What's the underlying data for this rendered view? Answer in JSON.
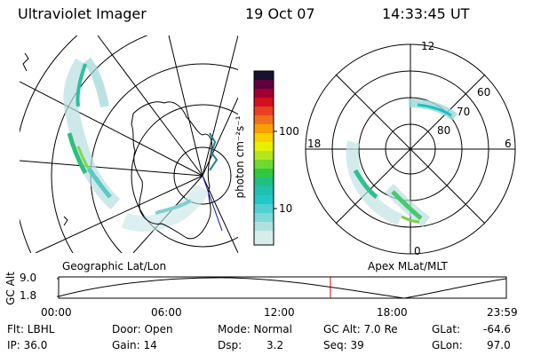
{
  "header": {
    "title": "Ultraviolet Imager",
    "date": "19 Oct 07",
    "time": "14:33:45 UT"
  },
  "colorbar": {
    "label": "photon cm⁻²s⁻¹",
    "ticks": [
      "100",
      "10"
    ]
  },
  "left_map": {
    "label": "Geographic Lat/Lon"
  },
  "right_map": {
    "label": "Apex MLat/MLT",
    "mlt_labels": [
      "12",
      "18",
      "6",
      "0"
    ],
    "lat_labels": [
      "60",
      "70",
      "80"
    ]
  },
  "altitude_plot": {
    "ylabel": "GC Alt",
    "yticks": [
      "9.0",
      "1.8"
    ],
    "xticks": [
      "00:00",
      "06:00",
      "12:00",
      "18:00",
      "23:59"
    ],
    "current_time_fraction": 0.607,
    "line_color": "#e00000"
  },
  "footer": {
    "filter": "Flt: LBHL",
    "ip": "IP: 36.0",
    "door": "Door: Open",
    "gain": "Gain: 14",
    "mode": "Mode: Normal",
    "dsp_label": "Dsp:",
    "dsp_value": "3.2",
    "gc_alt": "GC Alt: 7.0 Re",
    "seq": "Seq: 39",
    "glat_label": "GLat:",
    "glat_value": "-64.6",
    "glon_label": "GLon:",
    "glon_value": "97.0"
  }
}
